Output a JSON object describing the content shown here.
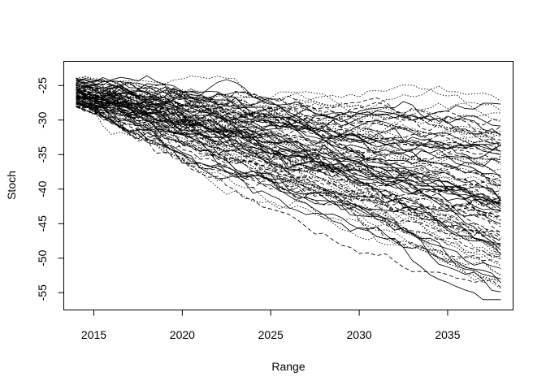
{
  "chart_data": {
    "type": "line",
    "title": "",
    "xlabel": "Range",
    "ylabel": "Stoch",
    "xlim": [
      2013.3,
      2038.7
    ],
    "ylim": [
      -57.5,
      -21.5
    ],
    "x_ticks": [
      2015,
      2020,
      2025,
      2030,
      2035
    ],
    "y_ticks": [
      -25,
      -30,
      -35,
      -40,
      -45,
      -50,
      -55
    ],
    "x_range": [
      2014,
      2038
    ],
    "grid": false,
    "legend": "none",
    "line_color": "#000000",
    "series_count": 100,
    "series_description": "Simulated trajectories; start near -23 to -29 in 2014 and end between about -30 and -56 in 2038",
    "start_range": [
      -29,
      -23
    ],
    "end_range": [
      -56,
      -30
    ],
    "line_styles": [
      "solid",
      "dashed",
      "dotted"
    ]
  }
}
